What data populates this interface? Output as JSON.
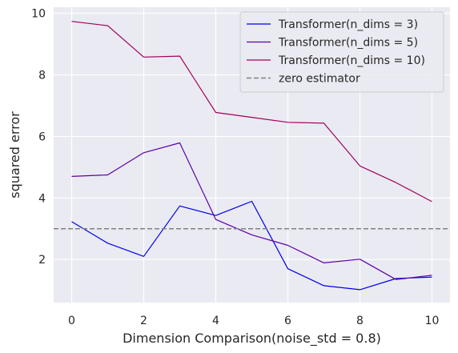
{
  "chart_data": {
    "type": "line",
    "xlabel": "Dimension Comparison(noise_std = 0.8)",
    "ylabel": "squared error",
    "xlim": [
      -0.5,
      10.5
    ],
    "ylim": [
      0.6,
      10.2
    ],
    "xticks": [
      0,
      2,
      4,
      6,
      8,
      10
    ],
    "yticks": [
      2,
      4,
      6,
      8,
      10
    ],
    "grid": true,
    "legend_position": "top-right",
    "x": [
      0,
      1,
      2,
      3,
      4,
      5,
      6,
      7,
      8,
      9,
      10
    ],
    "series": [
      {
        "name": "Transformer(n_dims = 3)",
        "color": "#0000ee",
        "style": "solid",
        "values": [
          3.23,
          2.53,
          2.1,
          3.74,
          3.43,
          3.89,
          1.7,
          1.15,
          1.02,
          1.38,
          1.43
        ]
      },
      {
        "name": "Transformer(n_dims = 5)",
        "color": "#5b00a8",
        "style": "solid",
        "values": [
          4.7,
          4.75,
          5.47,
          5.79,
          3.3,
          2.8,
          2.46,
          1.89,
          2.01,
          1.35,
          1.49
        ]
      },
      {
        "name": "Transformer(n_dims = 10)",
        "color": "#a0005a",
        "style": "solid",
        "values": [
          9.74,
          9.6,
          8.58,
          8.61,
          6.78,
          6.62,
          6.46,
          6.43,
          5.04,
          4.5,
          3.88
        ]
      },
      {
        "name": "zero estimator",
        "color": "#808080",
        "style": "dashed",
        "constant": 3.0
      }
    ]
  }
}
